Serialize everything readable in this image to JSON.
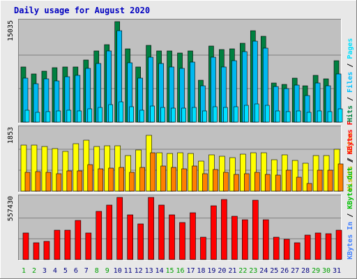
{
  "colors": {
    "hits": "#008040",
    "files": "#00c0ff",
    "pages": "#00e0ff",
    "visits": "#ffff00",
    "sites": "#ff8000",
    "kbytes": "#ff0000",
    "weekday": "#000080",
    "weekend": "#00a000",
    "panel": "#c0c0c0"
  },
  "chart_data": {
    "type": "bar",
    "title": "Daily usage for August 2020",
    "categories": [
      "1",
      "2",
      "3",
      "4",
      "5",
      "6",
      "7",
      "8",
      "9",
      "10",
      "11",
      "12",
      "13",
      "14",
      "15",
      "16",
      "17",
      "18",
      "19",
      "20",
      "21",
      "22",
      "23",
      "24",
      "25",
      "26",
      "27",
      "28",
      "29",
      "30",
      "31"
    ],
    "weekend_days": [
      "1",
      "2",
      "8",
      "9",
      "15",
      "16",
      "22",
      "23",
      "29",
      "30"
    ],
    "panels": [
      {
        "ymax_label": "15035",
        "ymax": 15035,
        "side_labels": [
          {
            "text": "Hits",
            "color": "#008040"
          },
          {
            "text": "Files",
            "color": "#00c0ff"
          },
          {
            "text": "Pages",
            "color": "#00e0ff"
          }
        ],
        "series": [
          {
            "name": "Hits",
            "color": "#008040",
            "values": [
              8200,
              7200,
              7600,
              8100,
              8200,
              8300,
              9300,
              10600,
              11600,
              15035,
              11000,
              8200,
              11500,
              10600,
              10600,
              10300,
              10700,
              6300,
              11400,
              10900,
              11000,
              11800,
              13700,
              12800,
              5800,
              5600,
              6600,
              5400,
              7000,
              6500,
              9200
            ]
          },
          {
            "name": "Files",
            "color": "#00b8f0",
            "values": [
              6600,
              5700,
              6500,
              6200,
              6800,
              7000,
              8000,
              8800,
              10700,
              13700,
              8900,
              6600,
              9700,
              8800,
              8300,
              8000,
              9000,
              5400,
              9700,
              8200,
              9200,
              10500,
              12100,
              11100,
              5300,
              5000,
              5500,
              4000,
              5800,
              5400,
              7200
            ]
          },
          {
            "name": "Pages",
            "color": "#00e0ff",
            "values": [
              1800,
              1500,
              1600,
              1700,
              1800,
              1700,
              2000,
              2200,
              2600,
              3000,
              2300,
              1800,
              2400,
              2200,
              2100,
              2100,
              2200,
              1700,
              2300,
              2200,
              2300,
              2500,
              2700,
              2500,
              1700,
              1600,
              1700,
              1500,
              1700,
              1600,
              2000
            ]
          }
        ]
      },
      {
        "ymax_label": "1853",
        "ymax": 1853,
        "side_labels": [
          {
            "text": "Visits",
            "color": "#c0c000"
          },
          {
            "text": "Sites",
            "color": "#ff8000"
          }
        ],
        "series": [
          {
            "name": "Visits",
            "color": "#ffff00",
            "values": [
              1350,
              1350,
              1310,
              1250,
              1170,
              1390,
              1500,
              1320,
              1330,
              1330,
              1040,
              1210,
              1640,
              1140,
              1120,
              1130,
              1120,
              890,
              1080,
              1030,
              980,
              1090,
              1130,
              1140,
              920,
              1070,
              910,
              830,
              1040,
              1040,
              1240
            ]
          },
          {
            "name": "Sites",
            "color": "#ff8000",
            "values": [
              550,
              580,
              560,
              510,
              590,
              600,
              790,
              650,
              670,
              690,
              560,
              700,
              1140,
              740,
              690,
              650,
              750,
              520,
              640,
              560,
              490,
              520,
              550,
              490,
              480,
              620,
              420,
              230,
              620,
              620,
              810
            ]
          }
        ]
      },
      {
        "ymax_label": "557430",
        "ymax": 557430,
        "side_labels": [
          {
            "text": "KBytes In",
            "color": "#4080ff"
          },
          {
            "text": "KBytes Out",
            "color": "#00c000"
          },
          {
            "text": "KBytes F",
            "color": "#ff0000"
          }
        ],
        "series": [
          {
            "name": "KBytes F",
            "color": "#ff0000",
            "values": [
              240000,
              150000,
              160000,
              260000,
              260000,
              350000,
              240000,
              430000,
              490000,
              557430,
              400000,
              320000,
              557430,
              490000,
              400000,
              330000,
              420000,
              200000,
              480000,
              540000,
              390000,
              360000,
              530000,
              360000,
              200000,
              180000,
              150000,
              220000,
              240000,
              230000,
              260000
            ]
          }
        ]
      }
    ]
  }
}
